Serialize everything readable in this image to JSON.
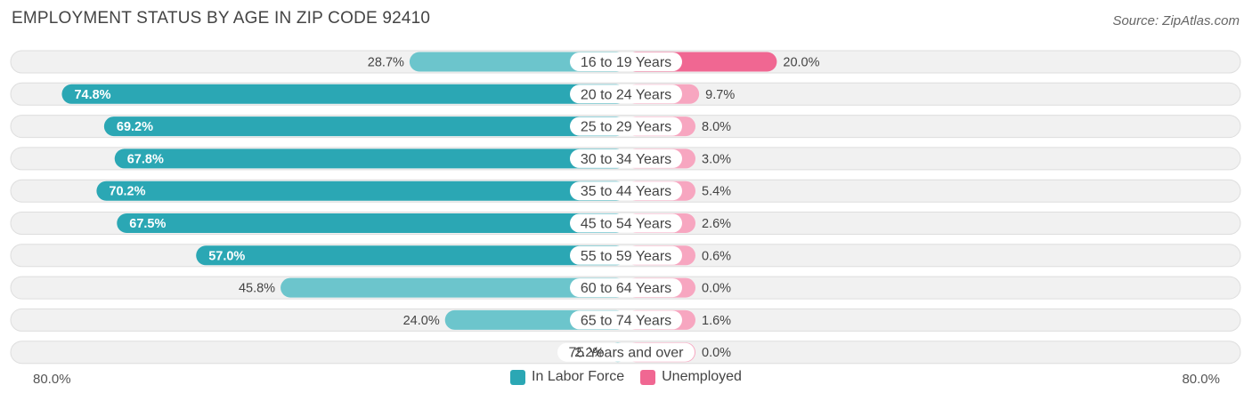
{
  "header": {
    "title": "EMPLOYMENT STATUS BY AGE IN ZIP CODE 92410",
    "source": "Source: ZipAtlas.com"
  },
  "axis": {
    "left_label": "80.0%",
    "right_label": "80.0%"
  },
  "colors": {
    "labor_force": "#2ba7b4",
    "labor_force_light": "#6cc5cc",
    "unemployed": "#f06792",
    "unemployed_light": "#f7a6c0",
    "row_bg": "#f1f1f1",
    "row_border": "#dedede"
  },
  "chart_data": {
    "type": "bar",
    "orientation": "diverging-horizontal",
    "title": "EMPLOYMENT STATUS BY AGE IN ZIP CODE 92410",
    "categories": [
      "16 to 19 Years",
      "20 to 24 Years",
      "25 to 29 Years",
      "30 to 34 Years",
      "35 to 44 Years",
      "45 to 54 Years",
      "55 to 59 Years",
      "60 to 64 Years",
      "65 to 74 Years",
      "75 Years and over"
    ],
    "series": [
      {
        "name": "In Labor Force",
        "values": [
          28.7,
          74.8,
          69.2,
          67.8,
          70.2,
          67.5,
          57.0,
          45.8,
          24.0,
          2.2
        ]
      },
      {
        "name": "Unemployed",
        "values": [
          20.0,
          9.7,
          8.0,
          3.0,
          5.4,
          2.6,
          0.6,
          0.0,
          1.6,
          0.0
        ]
      }
    ],
    "xlim": [
      0,
      80
    ],
    "legend": "bottom-center"
  }
}
